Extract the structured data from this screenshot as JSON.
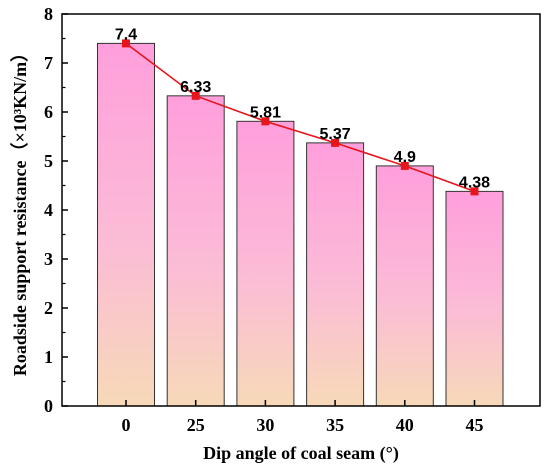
{
  "chart_data": {
    "type": "bar",
    "xlabel": "Dip angle of coal seam (°)",
    "ylabel": "Roadside support resistance（×10³KN/m）",
    "categories": [
      "0",
      "25",
      "30",
      "35",
      "40",
      "45"
    ],
    "values": [
      7.4,
      6.33,
      5.81,
      5.37,
      4.9,
      4.38
    ],
    "value_labels": [
      "7.4",
      "6.33",
      "5.81",
      "5.37",
      "4.9",
      "4.38"
    ],
    "ylim": [
      0,
      8
    ],
    "yticks": [
      "0",
      "1",
      "2",
      "3",
      "4",
      "5",
      "6",
      "7",
      "8"
    ],
    "grid": false,
    "overlay_line": {
      "type": "line",
      "values": [
        7.4,
        6.33,
        5.81,
        5.37,
        4.9,
        4.38
      ],
      "color": "#e8141c"
    },
    "colors": {
      "bar_top": "#ff9fdc",
      "bar_bottom": "#f7d9b8",
      "bar_stroke": "#333333",
      "line": "#e8141c"
    }
  }
}
